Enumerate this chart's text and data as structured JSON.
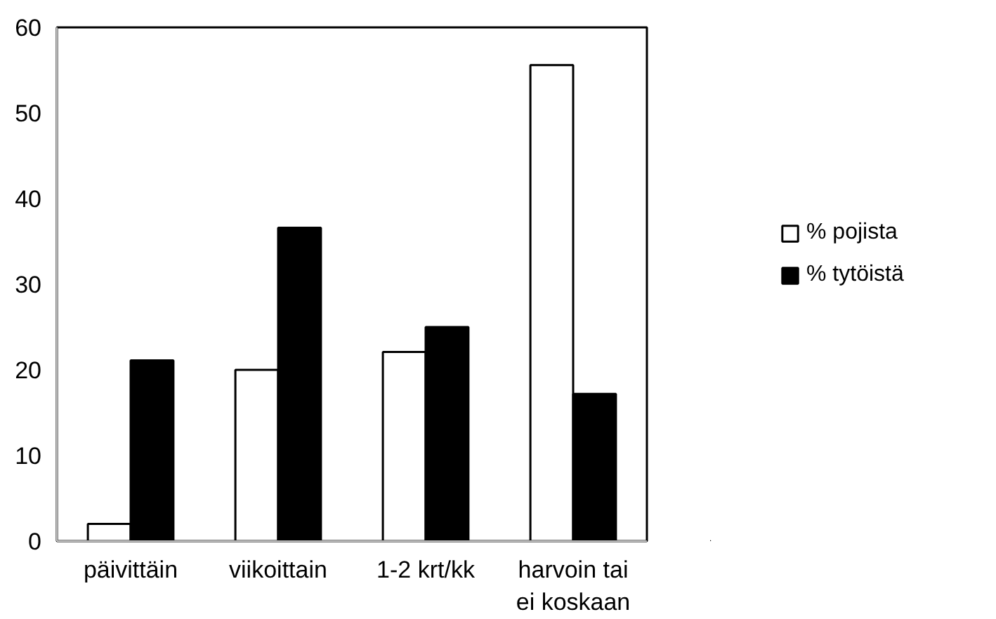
{
  "chart_data": {
    "type": "bar",
    "categories": [
      "päivittäin",
      "viikoittain",
      "1-2 krt/kk",
      "harvoin tai ei koskaan"
    ],
    "series": [
      {
        "name": "% pojista",
        "color": "#ffffff",
        "values": [
          2.0,
          20.0,
          22.1,
          55.6
        ]
      },
      {
        "name": "% tytöistä",
        "color": "#000000",
        "values": [
          21.1,
          36.6,
          25.0,
          17.2
        ]
      }
    ],
    "ylim": [
      0,
      60
    ],
    "yticks": [
      0,
      10,
      20,
      30,
      40,
      50,
      60
    ],
    "grid": false,
    "legend": "right"
  }
}
